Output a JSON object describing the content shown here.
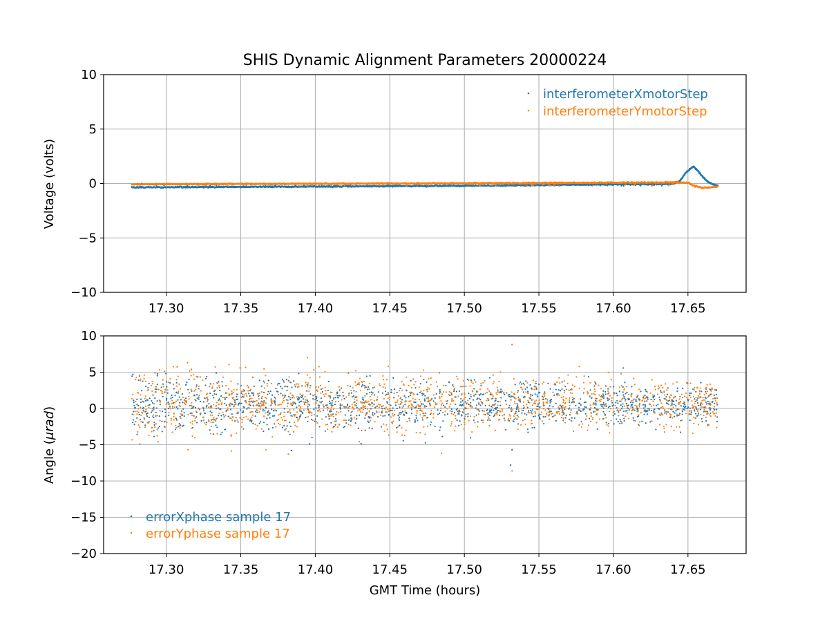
{
  "chart_data": [
    {
      "type": "scatter",
      "title": "SHIS Dynamic Alignment Parameters 20000224",
      "xlabel": "",
      "ylabel": "Voltage (volts)",
      "xlim": [
        17.258,
        17.689
      ],
      "ylim": [
        -10,
        10
      ],
      "xticks": [
        "17.30",
        "17.35",
        "17.40",
        "17.45",
        "17.50",
        "17.55",
        "17.60",
        "17.65"
      ],
      "yticks": [
        "10",
        "5",
        "0",
        "−5",
        "−10"
      ],
      "grid": true,
      "legend_position": "upper-right",
      "series": [
        {
          "name": "interferometerXmotorStep",
          "color": "#1f77b4",
          "marker": "point",
          "x_range": [
            17.277,
            17.67
          ],
          "x": [
            17.277,
            17.3,
            17.35,
            17.4,
            17.45,
            17.5,
            17.55,
            17.6,
            17.64,
            17.645,
            17.648,
            17.651,
            17.654,
            17.657,
            17.66,
            17.663,
            17.666,
            17.67
          ],
          "y": [
            -0.35,
            -0.34,
            -0.31,
            -0.28,
            -0.25,
            -0.2,
            -0.15,
            -0.08,
            -0.05,
            0.3,
            0.9,
            1.3,
            1.55,
            1.1,
            0.6,
            0.2,
            -0.05,
            -0.2
          ]
        },
        {
          "name": "interferometerYmotorStep",
          "color": "#ff7f0e",
          "marker": "point",
          "x_range": [
            17.277,
            17.67
          ],
          "x": [
            17.277,
            17.3,
            17.35,
            17.4,
            17.45,
            17.5,
            17.55,
            17.6,
            17.64,
            17.645,
            17.65,
            17.655,
            17.66,
            17.665,
            17.67
          ],
          "y": [
            -0.08,
            -0.06,
            -0.04,
            -0.02,
            0.0,
            0.02,
            0.05,
            0.08,
            0.1,
            0.1,
            0.05,
            -0.25,
            -0.4,
            -0.35,
            -0.3
          ]
        }
      ]
    },
    {
      "type": "scatter",
      "title": "",
      "xlabel": "GMT Time (hours)",
      "ylabel_prefix": "Angle (",
      "ylabel_unit": "μrad",
      "ylabel_suffix": ")",
      "xlim": [
        17.258,
        17.689
      ],
      "ylim": [
        -20,
        10
      ],
      "xticks": [
        "17.30",
        "17.35",
        "17.40",
        "17.45",
        "17.50",
        "17.55",
        "17.60",
        "17.65"
      ],
      "yticks": [
        "10",
        "5",
        "0",
        "−5",
        "−10",
        "−15",
        "−20"
      ],
      "grid": true,
      "legend_position": "lower-left",
      "series": [
        {
          "name": "errorXphase sample 17",
          "color": "#1f77b4",
          "marker": "point",
          "x_range": [
            17.277,
            17.67
          ],
          "mean": 0.5,
          "spread_start": 2.0,
          "spread_end": 1.3,
          "outliers": [
            [
              17.531,
              -7.8
            ],
            [
              17.532,
              -5.7
            ],
            [
              17.384,
              -5.8
            ]
          ]
        },
        {
          "name": "errorYphase sample 17",
          "color": "#ff7f0e",
          "marker": "point",
          "x_range": [
            17.277,
            17.67
          ],
          "mean": 0.7,
          "spread_start": 2.5,
          "spread_end": 1.5,
          "outliers": [
            [
              17.532,
              8.8
            ],
            [
              17.532,
              -8.6
            ],
            [
              17.382,
              -6.3
            ]
          ]
        }
      ]
    }
  ]
}
